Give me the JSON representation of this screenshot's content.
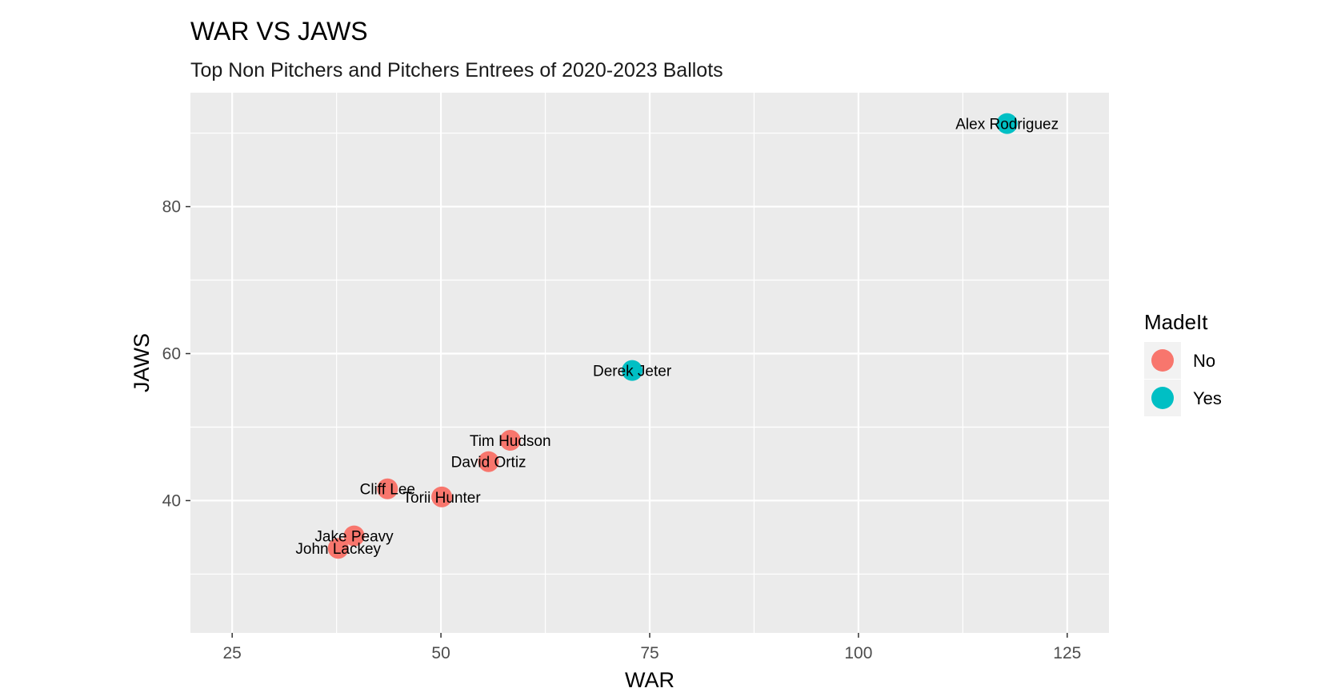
{
  "chart_data": {
    "type": "scatter",
    "title": "WAR VS JAWS",
    "subtitle": "Top Non Pitchers and Pitchers Entrees of 2020-2023 Ballots",
    "xlabel": "WAR",
    "ylabel": "JAWS",
    "xlim": [
      20.0,
      130.0
    ],
    "ylim": [
      22.0,
      95.5
    ],
    "xticks": [
      25,
      50,
      75,
      100,
      125
    ],
    "yticks": [
      40,
      60,
      80
    ],
    "grid": true,
    "legend": {
      "title": "MadeIt",
      "placement": "right",
      "entries": [
        {
          "label": "No",
          "color": "#F8766D"
        },
        {
          "label": "Yes",
          "color": "#00BFC4"
        }
      ]
    },
    "points": [
      {
        "label": "Alex Rodriguez",
        "x": 117.8,
        "y": 91.3,
        "group": "Yes"
      },
      {
        "label": "Derek Jeter",
        "x": 72.9,
        "y": 57.7,
        "group": "Yes"
      },
      {
        "label": "Tim Hudson",
        "x": 58.3,
        "y": 48.2,
        "group": "No"
      },
      {
        "label": "David Ortiz",
        "x": 55.7,
        "y": 45.3,
        "group": "No"
      },
      {
        "label": "Cliff Lee",
        "x": 43.6,
        "y": 41.6,
        "group": "No"
      },
      {
        "label": "Torii Hunter",
        "x": 50.1,
        "y": 40.5,
        "group": "No"
      },
      {
        "label": "Jake Peavy",
        "x": 39.6,
        "y": 35.2,
        "group": "No"
      },
      {
        "label": "John Lackey",
        "x": 37.7,
        "y": 33.5,
        "group": "No"
      }
    ]
  }
}
